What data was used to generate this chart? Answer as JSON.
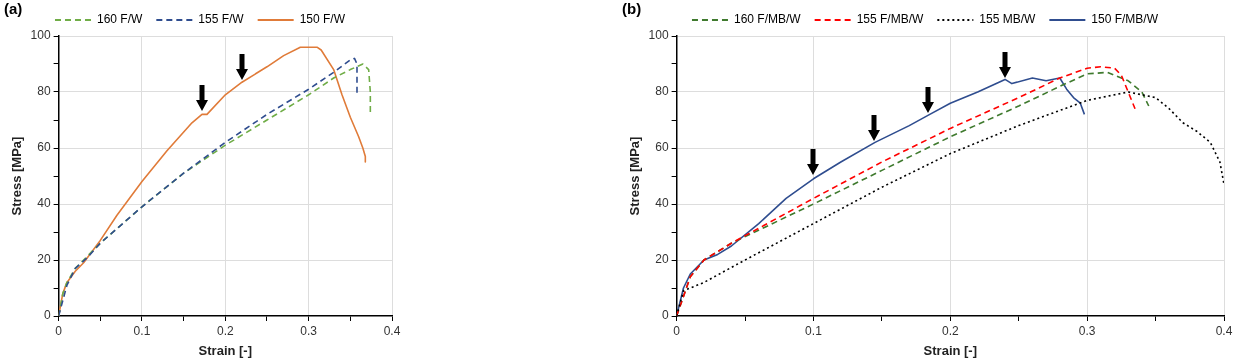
{
  "chart_data": [
    {
      "type": "line",
      "annotations": [
        "(a)"
      ],
      "xlabel": "Strain [-]",
      "ylabel": "Stress [MPa]",
      "xlim": [
        0,
        0.4
      ],
      "ylim": [
        0,
        100
      ],
      "xticks": [
        0,
        {
          "value": 0.05,
          "label": null
        },
        0.1,
        {
          "value": 0.15,
          "label": null
        },
        0.2,
        {
          "value": 0.25,
          "label": null
        },
        0.3,
        {
          "value": 0.35,
          "label": null
        },
        0.4
      ],
      "yticks": [
        0,
        {
          "value": 10,
          "label": null
        },
        20,
        {
          "value": 30,
          "label": null
        },
        40,
        {
          "value": 50,
          "label": null
        },
        60,
        {
          "value": 70,
          "label": null
        },
        80,
        {
          "value": 90,
          "label": null
        },
        100
      ],
      "grid": true,
      "legend": "top",
      "marker": "none",
      "series": [
        {
          "name": "160 F/W",
          "color": "#70ad47",
          "line_style": "dashed",
          "x": [
            0,
            0.005,
            0.01,
            0.02,
            0.03,
            0.05,
            0.1,
            0.15,
            0.2,
            0.25,
            0.3,
            0.33,
            0.35,
            0.365,
            0.372,
            0.374,
            0.374
          ],
          "values": [
            0,
            8,
            12,
            17,
            20,
            26,
            39,
            51,
            61,
            70,
            79,
            85,
            88,
            90,
            88,
            80,
            72
          ]
        },
        {
          "name": "155 F/W",
          "color": "#2f4d8f",
          "line_style": "dashed",
          "x": [
            0,
            0.01,
            0.02,
            0.035,
            0.05,
            0.1,
            0.15,
            0.2,
            0.25,
            0.3,
            0.33,
            0.35,
            0.355,
            0.358,
            0.358
          ],
          "values": [
            0,
            11,
            17,
            21,
            26,
            39,
            51,
            62,
            72,
            81,
            87,
            91.5,
            92,
            90,
            79
          ]
        },
        {
          "name": "150 F/W",
          "color": "#e07b39",
          "line_style": "solid",
          "x": [
            0,
            0.005,
            0.01,
            0.02,
            0.03,
            0.05,
            0.07,
            0.1,
            0.13,
            0.16,
            0.172,
            0.178,
            0.2,
            0.22,
            0.25,
            0.27,
            0.29,
            0.31,
            0.315,
            0.33,
            0.34,
            0.35,
            0.36,
            0.365,
            0.368,
            0.368
          ],
          "values": [
            0,
            8,
            12,
            16,
            19,
            27,
            36,
            48,
            59,
            69,
            72,
            72,
            79,
            83.5,
            89,
            93,
            96,
            96,
            95,
            88,
            79,
            71,
            64,
            60,
            57,
            55
          ]
        }
      ]
    },
    {
      "type": "line",
      "annotations": [
        "(b)"
      ],
      "xlabel": "Strain [-]",
      "ylabel": "Stress [MPa]",
      "xlim": [
        0,
        0.4
      ],
      "ylim": [
        0,
        100
      ],
      "xticks": [
        0,
        {
          "value": 0.05,
          "label": null
        },
        0.1,
        {
          "value": 0.15,
          "label": null
        },
        0.2,
        {
          "value": 0.25,
          "label": null
        },
        0.3,
        {
          "value": 0.35,
          "label": null
        },
        0.4
      ],
      "yticks": [
        0,
        {
          "value": 10,
          "label": null
        },
        20,
        {
          "value": 30,
          "label": null
        },
        40,
        {
          "value": 50,
          "label": null
        },
        60,
        {
          "value": 70,
          "label": null
        },
        80,
        {
          "value": 90,
          "label": null
        },
        100
      ],
      "grid": true,
      "legend": "top",
      "marker": "none",
      "series": [
        {
          "name": "160 F/MB/W",
          "color": "#3f7a2e",
          "line_style": "dashed",
          "x": [
            0,
            0.01,
            0.02,
            0.04,
            0.1,
            0.15,
            0.2,
            0.25,
            0.28,
            0.3,
            0.315,
            0.33,
            0.34,
            0.345
          ],
          "values": [
            0,
            14,
            20,
            26,
            40,
            52,
            64,
            75,
            82,
            86.5,
            87,
            84,
            80,
            75
          ]
        },
        {
          "name": "155 F/MB/W",
          "color": "#ff0000",
          "line_style": "dashed",
          "x": [
            0,
            0.01,
            0.02,
            0.04,
            0.1,
            0.15,
            0.2,
            0.25,
            0.28,
            0.3,
            0.31,
            0.32,
            0.325,
            0.33,
            0.335
          ],
          "values": [
            0,
            14,
            20,
            26,
            42,
            55,
            67,
            78,
            85,
            88.5,
            89,
            88.5,
            86,
            80,
            74
          ]
        },
        {
          "name": "155 MB/W",
          "color": "#000000",
          "line_style": "dotted",
          "x": [
            0,
            0.005,
            0.02,
            0.05,
            0.1,
            0.15,
            0.2,
            0.25,
            0.3,
            0.33,
            0.35,
            0.36,
            0.37,
            0.38,
            0.39,
            0.397,
            0.4
          ],
          "values": [
            0,
            9,
            12,
            20,
            33,
            46,
            58,
            68,
            77,
            80,
            78,
            74,
            69,
            66,
            62,
            55,
            47
          ]
        },
        {
          "name": "150 F/MB/W",
          "color": "#2f4d8f",
          "line_style": "solid",
          "x": [
            0,
            0.005,
            0.01,
            0.02,
            0.03,
            0.04,
            0.06,
            0.08,
            0.1,
            0.12,
            0.145,
            0.17,
            0.185,
            0.2,
            0.22,
            0.24,
            0.245,
            0.26,
            0.27,
            0.28,
            0.285,
            0.29,
            0.295,
            0.298
          ],
          "values": [
            0,
            10,
            15,
            20,
            22,
            25,
            33,
            42,
            49,
            55,
            62,
            68,
            72,
            76,
            80,
            84.5,
            83,
            85,
            84,
            85,
            81,
            78,
            76,
            72
          ]
        }
      ]
    }
  ]
}
